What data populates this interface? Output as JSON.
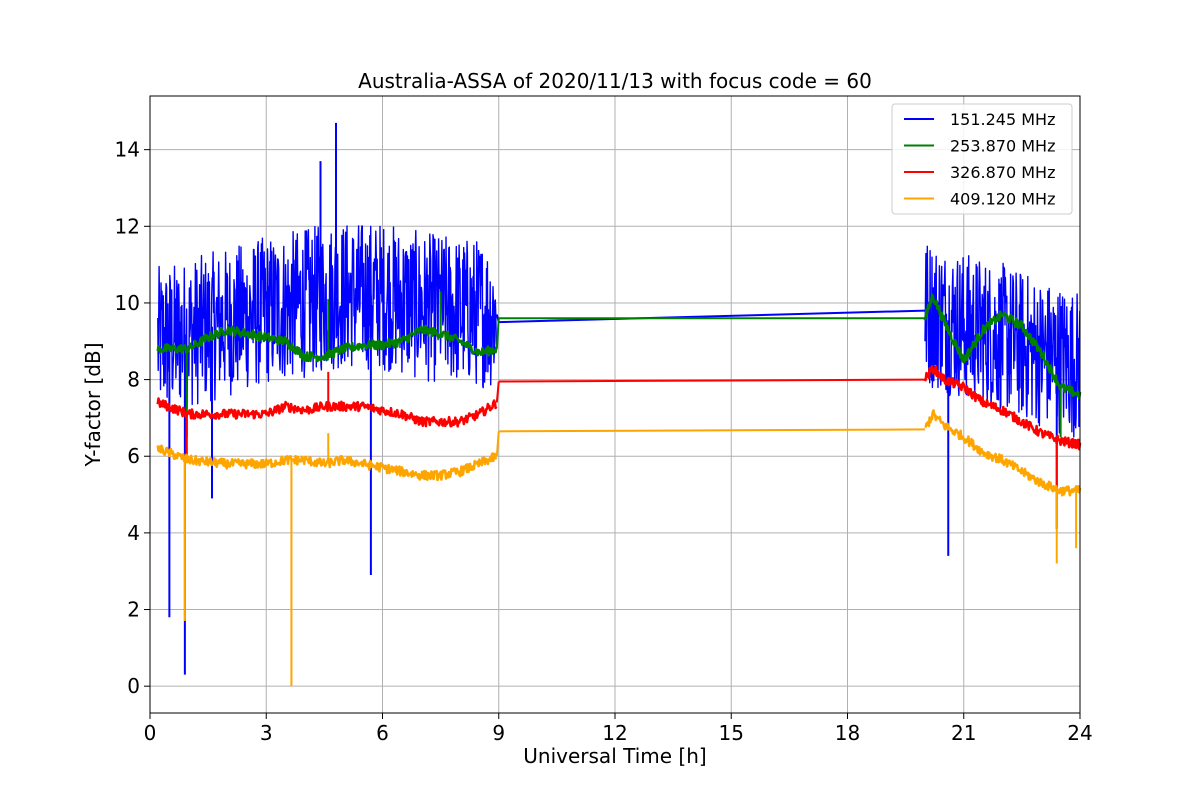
{
  "chart_data": {
    "type": "line",
    "title": "Australia-ASSA of 2020/11/13 with focus code = 60",
    "xlabel": "Universal Time [h]",
    "ylabel": "Y-factor [dB]",
    "xlim": [
      0,
      24
    ],
    "ylim": [
      -0.7,
      15.4
    ],
    "xticks": [
      0,
      3,
      6,
      9,
      12,
      15,
      18,
      21,
      24
    ],
    "yticks": [
      0,
      2,
      4,
      6,
      8,
      10,
      12,
      14
    ],
    "grid": true,
    "legend_position": "top-right",
    "series": [
      {
        "name": "151.245 MHz",
        "color": "#0000ff",
        "band": {
          "low": 7.4,
          "high": 10.8
        },
        "x": [
          0.2,
          1,
          2,
          3,
          4,
          4.8,
          6,
          7,
          8,
          8.95,
          9.0,
          20.0,
          20.2,
          21,
          22,
          23,
          24
        ],
        "y": [
          9.0,
          9.2,
          9.5,
          9.8,
          10.0,
          10.2,
          10.2,
          9.9,
          9.8,
          9.7,
          9.5,
          9.8,
          9.7,
          9.4,
          9.1,
          8.7,
          8.4
        ],
        "spikes": [
          [
            0.5,
            1.8
          ],
          [
            0.9,
            0.3
          ],
          [
            1.6,
            4.9
          ],
          [
            4.4,
            13.7
          ],
          [
            4.8,
            14.7
          ],
          [
            5.7,
            2.9
          ],
          [
            20.6,
            3.4
          ],
          [
            23.4,
            4.1
          ]
        ]
      },
      {
        "name": "253.870 MHz",
        "color": "#008000",
        "x": [
          0.2,
          1,
          1.5,
          2,
          2.5,
          3,
          3.5,
          4,
          4.5,
          5,
          5.5,
          6,
          6.5,
          7,
          7.5,
          8,
          8.5,
          8.95,
          9.0,
          20.0,
          20.2,
          20.5,
          21,
          21.5,
          22,
          22.5,
          23,
          23.5,
          24
        ],
        "y": [
          8.8,
          8.8,
          9.1,
          9.3,
          9.2,
          9.1,
          9.0,
          8.6,
          8.6,
          8.8,
          8.9,
          8.9,
          9.0,
          9.3,
          9.2,
          9.0,
          8.7,
          8.8,
          9.6,
          9.6,
          10.2,
          9.5,
          8.5,
          9.3,
          9.7,
          9.4,
          8.7,
          7.8,
          7.6
        ],
        "spikes": [
          [
            0.95,
            6.5
          ],
          [
            4.6,
            10.1
          ],
          [
            7.5,
            10.3
          ],
          [
            23.5,
            6.5
          ]
        ]
      },
      {
        "name": "326.870 MHz",
        "color": "#ff0000",
        "x": [
          0.2,
          1,
          2,
          3,
          3.5,
          4,
          4.5,
          5,
          5.5,
          6,
          6.5,
          7,
          7.5,
          8,
          8.5,
          8.95,
          9.0,
          20.0,
          20.2,
          20.5,
          21,
          21.5,
          22,
          22.5,
          23,
          23.5,
          24
        ],
        "y": [
          7.4,
          7.1,
          7.1,
          7.1,
          7.3,
          7.2,
          7.3,
          7.3,
          7.3,
          7.2,
          7.1,
          6.9,
          6.9,
          6.9,
          7.1,
          7.4,
          7.95,
          8.0,
          8.3,
          8.0,
          7.8,
          7.4,
          7.2,
          6.9,
          6.6,
          6.4,
          6.3
        ],
        "spikes": [
          [
            0.95,
            6.0
          ],
          [
            4.6,
            8.2
          ],
          [
            23.4,
            5.2
          ]
        ]
      },
      {
        "name": "409.120 MHz",
        "color": "#ffa500",
        "x": [
          0.2,
          1,
          2,
          3,
          3.5,
          4,
          4.5,
          5,
          5.5,
          6,
          6.5,
          7,
          7.5,
          8,
          8.5,
          8.95,
          9.0,
          20.0,
          20.2,
          20.5,
          21,
          21.5,
          22,
          22.5,
          23,
          23.5,
          24
        ],
        "y": [
          6.2,
          5.9,
          5.8,
          5.8,
          5.9,
          5.9,
          5.8,
          5.9,
          5.8,
          5.7,
          5.6,
          5.5,
          5.5,
          5.6,
          5.8,
          6.0,
          6.65,
          6.7,
          7.1,
          6.8,
          6.5,
          6.1,
          5.9,
          5.6,
          5.3,
          5.1,
          5.1
        ],
        "spikes": [
          [
            0.9,
            1.7
          ],
          [
            3.65,
            0.0
          ],
          [
            4.6,
            6.6
          ],
          [
            23.4,
            3.2
          ],
          [
            23.9,
            3.6
          ]
        ]
      }
    ]
  }
}
